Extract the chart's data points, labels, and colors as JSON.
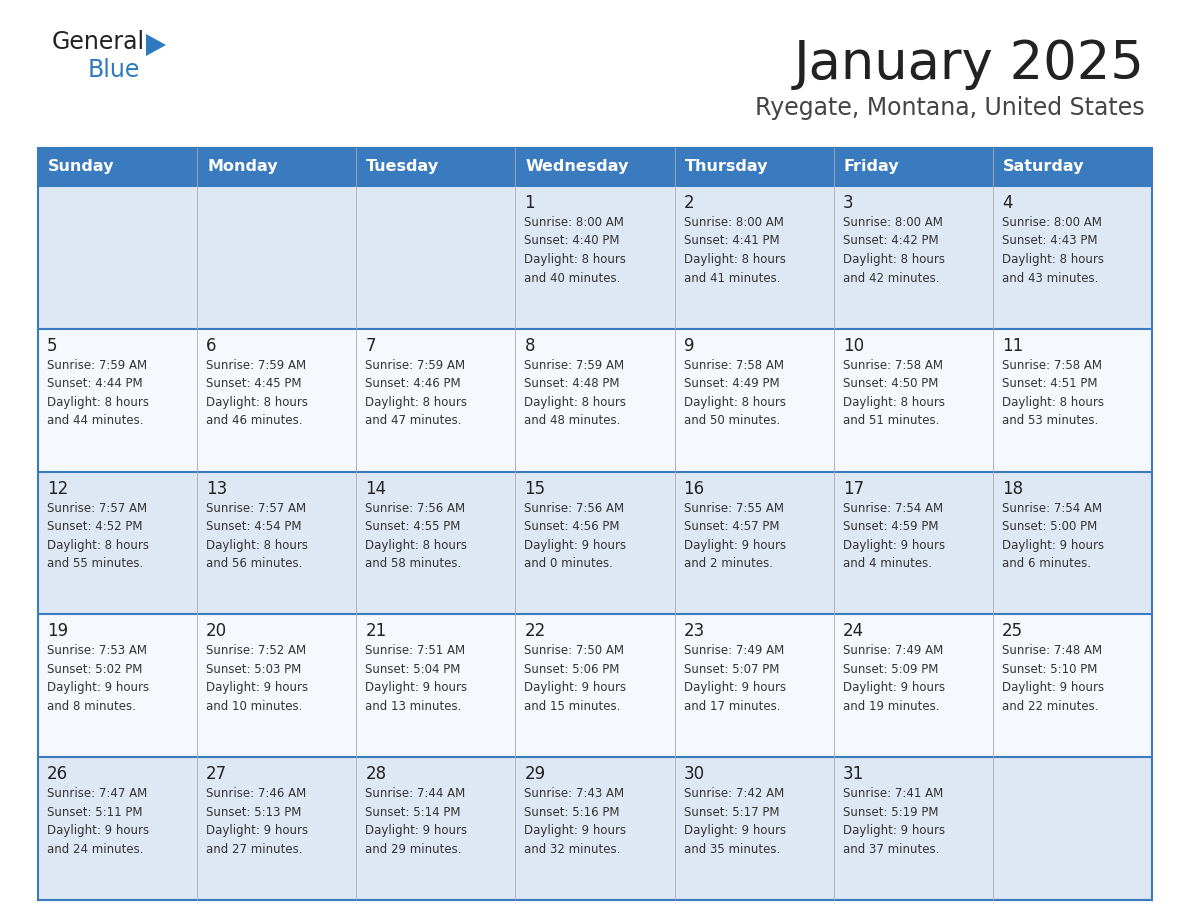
{
  "title": "January 2025",
  "subtitle": "Ryegate, Montana, United States",
  "days_of_week": [
    "Sunday",
    "Monday",
    "Tuesday",
    "Wednesday",
    "Thursday",
    "Friday",
    "Saturday"
  ],
  "header_bg": "#3a7bbf",
  "header_text": "#ffffff",
  "cell_bg_odd": "#dde8f4",
  "cell_bg_even": "#f5f8fc",
  "border_color": "#3a7bbf",
  "day_number_color": "#222222",
  "cell_text_color": "#333333",
  "title_color": "#222222",
  "subtitle_color": "#444444",
  "logo_general_color": "#222222",
  "logo_blue_color": "#2e7abf",
  "logo_triangle_color": "#2e7abf",
  "calendar": [
    [
      {
        "day": null,
        "text": ""
      },
      {
        "day": null,
        "text": ""
      },
      {
        "day": null,
        "text": ""
      },
      {
        "day": 1,
        "text": "Sunrise: 8:00 AM\nSunset: 4:40 PM\nDaylight: 8 hours\nand 40 minutes."
      },
      {
        "day": 2,
        "text": "Sunrise: 8:00 AM\nSunset: 4:41 PM\nDaylight: 8 hours\nand 41 minutes."
      },
      {
        "day": 3,
        "text": "Sunrise: 8:00 AM\nSunset: 4:42 PM\nDaylight: 8 hours\nand 42 minutes."
      },
      {
        "day": 4,
        "text": "Sunrise: 8:00 AM\nSunset: 4:43 PM\nDaylight: 8 hours\nand 43 minutes."
      }
    ],
    [
      {
        "day": 5,
        "text": "Sunrise: 7:59 AM\nSunset: 4:44 PM\nDaylight: 8 hours\nand 44 minutes."
      },
      {
        "day": 6,
        "text": "Sunrise: 7:59 AM\nSunset: 4:45 PM\nDaylight: 8 hours\nand 46 minutes."
      },
      {
        "day": 7,
        "text": "Sunrise: 7:59 AM\nSunset: 4:46 PM\nDaylight: 8 hours\nand 47 minutes."
      },
      {
        "day": 8,
        "text": "Sunrise: 7:59 AM\nSunset: 4:48 PM\nDaylight: 8 hours\nand 48 minutes."
      },
      {
        "day": 9,
        "text": "Sunrise: 7:58 AM\nSunset: 4:49 PM\nDaylight: 8 hours\nand 50 minutes."
      },
      {
        "day": 10,
        "text": "Sunrise: 7:58 AM\nSunset: 4:50 PM\nDaylight: 8 hours\nand 51 minutes."
      },
      {
        "day": 11,
        "text": "Sunrise: 7:58 AM\nSunset: 4:51 PM\nDaylight: 8 hours\nand 53 minutes."
      }
    ],
    [
      {
        "day": 12,
        "text": "Sunrise: 7:57 AM\nSunset: 4:52 PM\nDaylight: 8 hours\nand 55 minutes."
      },
      {
        "day": 13,
        "text": "Sunrise: 7:57 AM\nSunset: 4:54 PM\nDaylight: 8 hours\nand 56 minutes."
      },
      {
        "day": 14,
        "text": "Sunrise: 7:56 AM\nSunset: 4:55 PM\nDaylight: 8 hours\nand 58 minutes."
      },
      {
        "day": 15,
        "text": "Sunrise: 7:56 AM\nSunset: 4:56 PM\nDaylight: 9 hours\nand 0 minutes."
      },
      {
        "day": 16,
        "text": "Sunrise: 7:55 AM\nSunset: 4:57 PM\nDaylight: 9 hours\nand 2 minutes."
      },
      {
        "day": 17,
        "text": "Sunrise: 7:54 AM\nSunset: 4:59 PM\nDaylight: 9 hours\nand 4 minutes."
      },
      {
        "day": 18,
        "text": "Sunrise: 7:54 AM\nSunset: 5:00 PM\nDaylight: 9 hours\nand 6 minutes."
      }
    ],
    [
      {
        "day": 19,
        "text": "Sunrise: 7:53 AM\nSunset: 5:02 PM\nDaylight: 9 hours\nand 8 minutes."
      },
      {
        "day": 20,
        "text": "Sunrise: 7:52 AM\nSunset: 5:03 PM\nDaylight: 9 hours\nand 10 minutes."
      },
      {
        "day": 21,
        "text": "Sunrise: 7:51 AM\nSunset: 5:04 PM\nDaylight: 9 hours\nand 13 minutes."
      },
      {
        "day": 22,
        "text": "Sunrise: 7:50 AM\nSunset: 5:06 PM\nDaylight: 9 hours\nand 15 minutes."
      },
      {
        "day": 23,
        "text": "Sunrise: 7:49 AM\nSunset: 5:07 PM\nDaylight: 9 hours\nand 17 minutes."
      },
      {
        "day": 24,
        "text": "Sunrise: 7:49 AM\nSunset: 5:09 PM\nDaylight: 9 hours\nand 19 minutes."
      },
      {
        "day": 25,
        "text": "Sunrise: 7:48 AM\nSunset: 5:10 PM\nDaylight: 9 hours\nand 22 minutes."
      }
    ],
    [
      {
        "day": 26,
        "text": "Sunrise: 7:47 AM\nSunset: 5:11 PM\nDaylight: 9 hours\nand 24 minutes."
      },
      {
        "day": 27,
        "text": "Sunrise: 7:46 AM\nSunset: 5:13 PM\nDaylight: 9 hours\nand 27 minutes."
      },
      {
        "day": 28,
        "text": "Sunrise: 7:44 AM\nSunset: 5:14 PM\nDaylight: 9 hours\nand 29 minutes."
      },
      {
        "day": 29,
        "text": "Sunrise: 7:43 AM\nSunset: 5:16 PM\nDaylight: 9 hours\nand 32 minutes."
      },
      {
        "day": 30,
        "text": "Sunrise: 7:42 AM\nSunset: 5:17 PM\nDaylight: 9 hours\nand 35 minutes."
      },
      {
        "day": 31,
        "text": "Sunrise: 7:41 AM\nSunset: 5:19 PM\nDaylight: 9 hours\nand 37 minutes."
      },
      {
        "day": null,
        "text": ""
      }
    ]
  ]
}
